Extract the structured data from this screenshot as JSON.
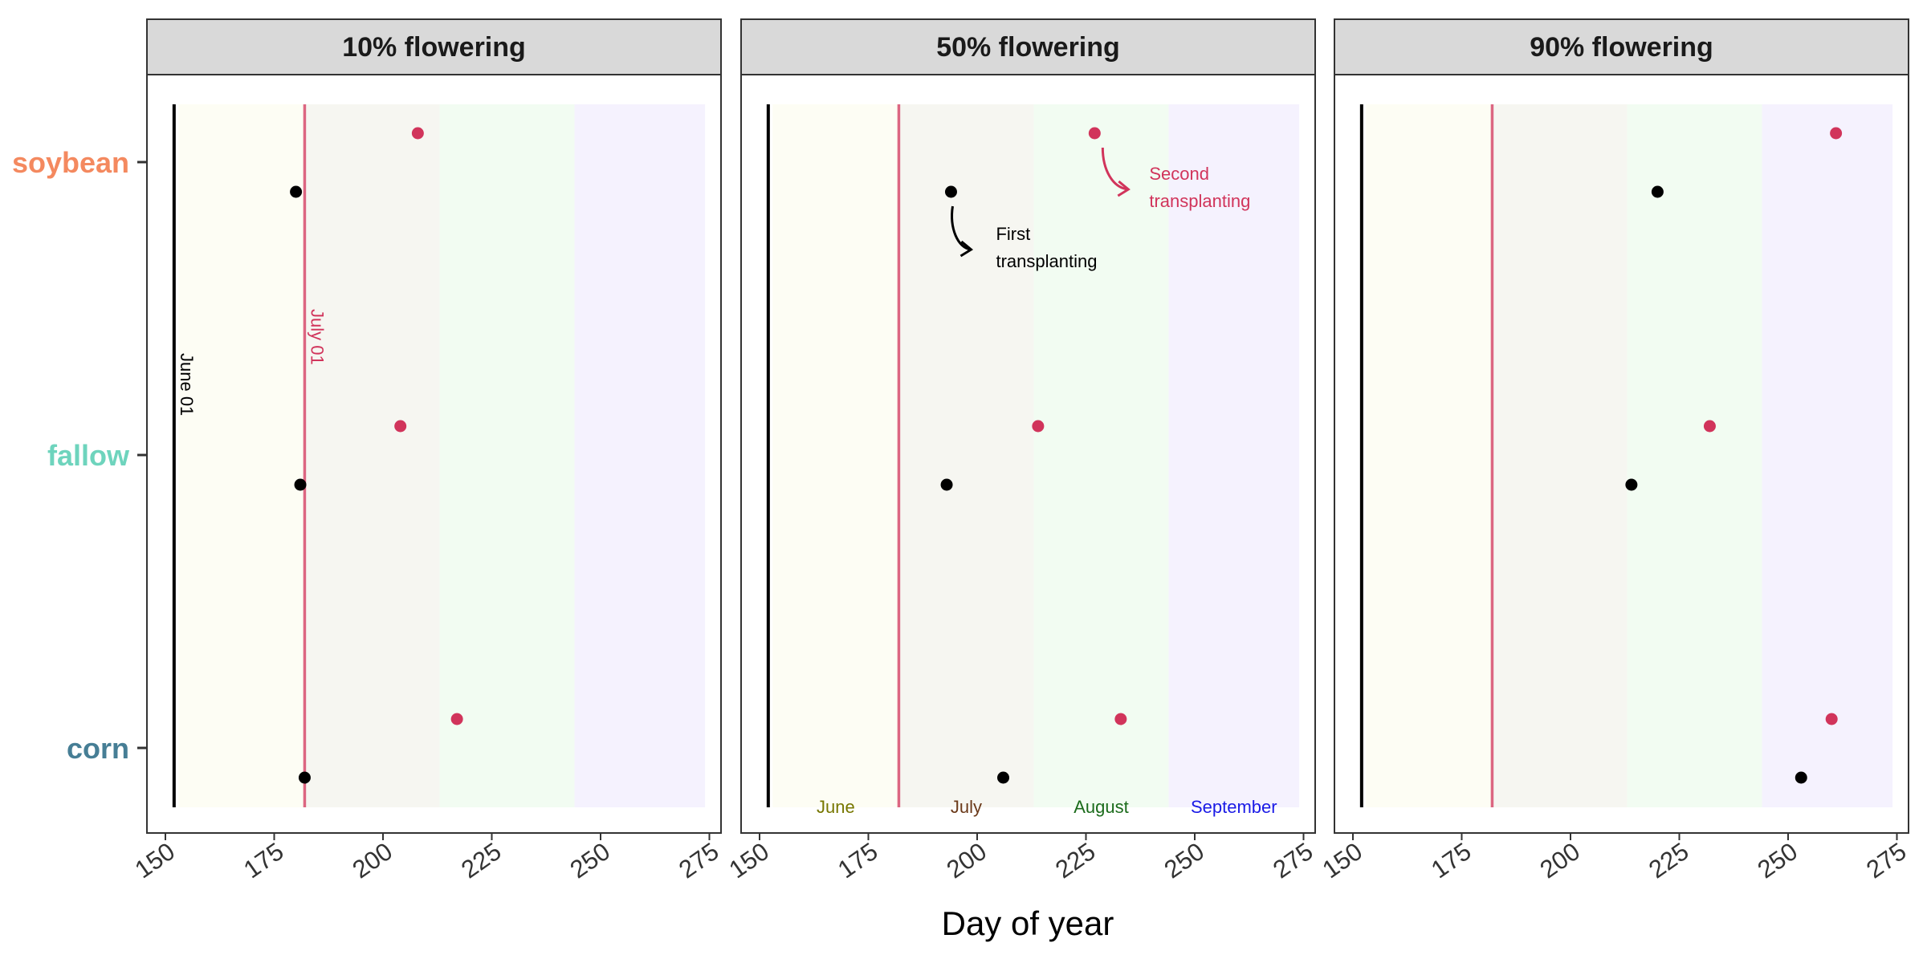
{
  "chart_data": {
    "type": "scatter",
    "title": "",
    "xlabel": "Day of year",
    "ylabel": "",
    "xlim": [
      148,
      276
    ],
    "xticks": [
      150,
      175,
      200,
      225,
      250,
      275
    ],
    "categories": [
      "soybean",
      "fallow",
      "corn"
    ],
    "category_colors": {
      "soybean": "#f4895f",
      "fallow": "#6ed4bd",
      "corn": "#467e95"
    },
    "series_colors": {
      "first": "#000000",
      "second": "#d1345b"
    },
    "month_bands": [
      {
        "name": "June",
        "start": 153,
        "end": 182,
        "fill": "#fdfdf4",
        "text_color": "#777700"
      },
      {
        "name": "July",
        "start": 182,
        "end": 213,
        "fill": "#f6f6f1",
        "text_color": "#6b3a1a"
      },
      {
        "name": "August",
        "start": 213,
        "end": 244,
        "fill": "#f2fcf2",
        "text_color": "#1b6b1b"
      },
      {
        "name": "September",
        "start": 244,
        "end": 274,
        "fill": "#f5f2fe",
        "text_color": "#1a1ae6"
      }
    ],
    "vlines": [
      {
        "x": 152,
        "color": "#000000",
        "label": "June 01"
      },
      {
        "x": 182,
        "color": "#d1345b",
        "label": "July 01"
      }
    ],
    "panels": [
      {
        "title": "10% flowering",
        "points": [
          {
            "crop": "soybean",
            "series": "second",
            "x": 208
          },
          {
            "crop": "soybean",
            "series": "first",
            "x": 180
          },
          {
            "crop": "fallow",
            "series": "second",
            "x": 204
          },
          {
            "crop": "fallow",
            "series": "first",
            "x": 181
          },
          {
            "crop": "corn",
            "series": "second",
            "x": 217
          },
          {
            "crop": "corn",
            "series": "first",
            "x": 182
          }
        ]
      },
      {
        "title": "50% flowering",
        "points": [
          {
            "crop": "soybean",
            "series": "second",
            "x": 227
          },
          {
            "crop": "soybean",
            "series": "first",
            "x": 194
          },
          {
            "crop": "fallow",
            "series": "second",
            "x": 214
          },
          {
            "crop": "fallow",
            "series": "first",
            "x": 193
          },
          {
            "crop": "corn",
            "series": "second",
            "x": 233
          },
          {
            "crop": "corn",
            "series": "first",
            "x": 206
          }
        ],
        "annotations": [
          {
            "series": "first",
            "lines": [
              "First",
              "transplanting"
            ]
          },
          {
            "series": "second",
            "lines": [
              "Second",
              "transplanting"
            ]
          }
        ]
      },
      {
        "title": "90% flowering",
        "points": [
          {
            "crop": "soybean",
            "series": "second",
            "x": 261
          },
          {
            "crop": "soybean",
            "series": "first",
            "x": 220
          },
          {
            "crop": "fallow",
            "series": "second",
            "x": 232
          },
          {
            "crop": "fallow",
            "series": "first",
            "x": 214
          },
          {
            "crop": "corn",
            "series": "second",
            "x": 260
          },
          {
            "crop": "corn",
            "series": "first",
            "x": 253
          }
        ]
      }
    ]
  }
}
